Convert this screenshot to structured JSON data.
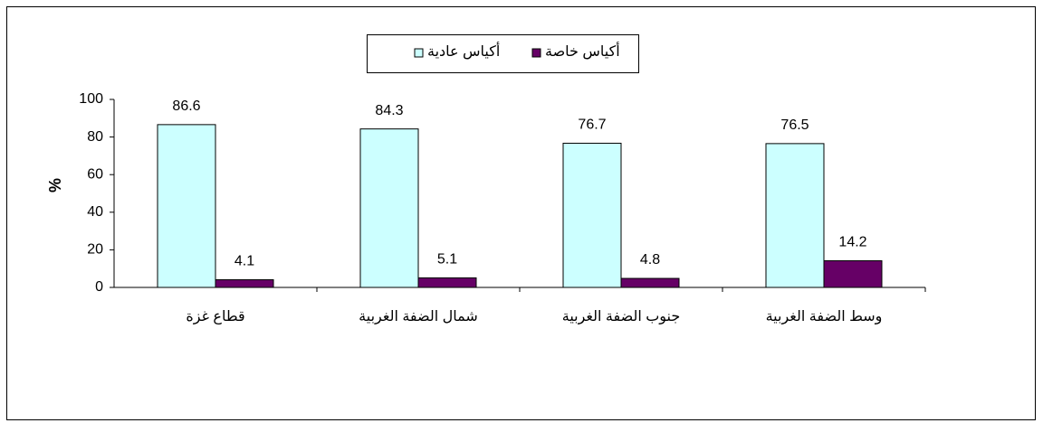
{
  "chart_data": {
    "type": "bar",
    "categories": [
      "قطاع غزة",
      "شمال الضفة الغربية",
      "جنوب الضفة الغربية",
      "وسط الضفة الغربية"
    ],
    "series": [
      {
        "name": "أكياس عادية",
        "color": "#ccffff",
        "values": [
          86.6,
          84.3,
          76.7,
          76.5
        ]
      },
      {
        "name": "أكياس خاصة",
        "color": "#660066",
        "values": [
          4.1,
          5.1,
          4.8,
          14.2
        ]
      }
    ],
    "y_label": "%",
    "ylim": [
      0,
      100
    ],
    "yticks": [
      0,
      20,
      40,
      60,
      80,
      100
    ],
    "grid": false
  }
}
